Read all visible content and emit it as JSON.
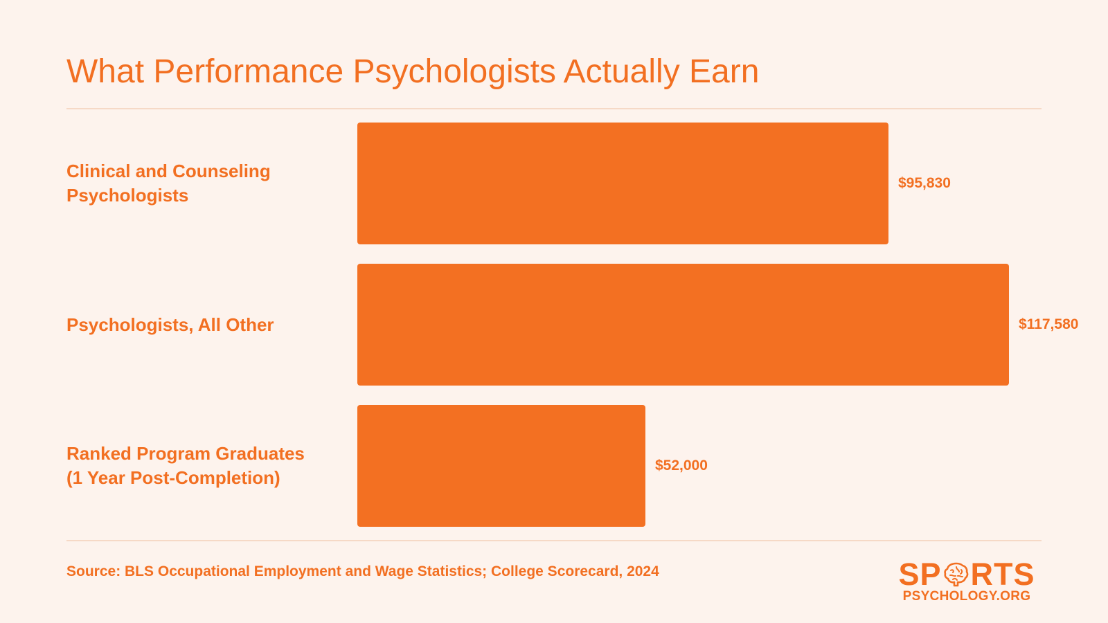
{
  "chart_data": {
    "type": "bar",
    "orientation": "horizontal",
    "title": "What Performance Psychologists Actually Earn",
    "categories": [
      "Clinical and Counseling Psychologists",
      "Psychologists, All Other",
      "Ranked Program Graduates (1 Year Post-Completion)"
    ],
    "category_lines": [
      [
        "Clinical and Counseling",
        "Psychologists"
      ],
      [
        "Psychologists, All Other"
      ],
      [
        "Ranked Program Graduates",
        "(1 Year Post-Completion)"
      ]
    ],
    "values": [
      95830,
      117580,
      52000
    ],
    "value_labels": [
      "$95,830",
      "$117,580",
      "$52,000"
    ],
    "xlim": [
      0,
      140000
    ],
    "grid": false,
    "legend": "none",
    "bar_color": "#f37022",
    "text_color": "#f26f21",
    "background": "#fdf3ed"
  },
  "footer": {
    "source": "Source: BLS Occupational Employment and Wage Statistics; College Scorecard, 2024"
  },
  "logo": {
    "top_left": "SP",
    "top_right": "RTS",
    "bottom": "PSYCHOLOGY.ORG",
    "icon": "brain-icon"
  }
}
